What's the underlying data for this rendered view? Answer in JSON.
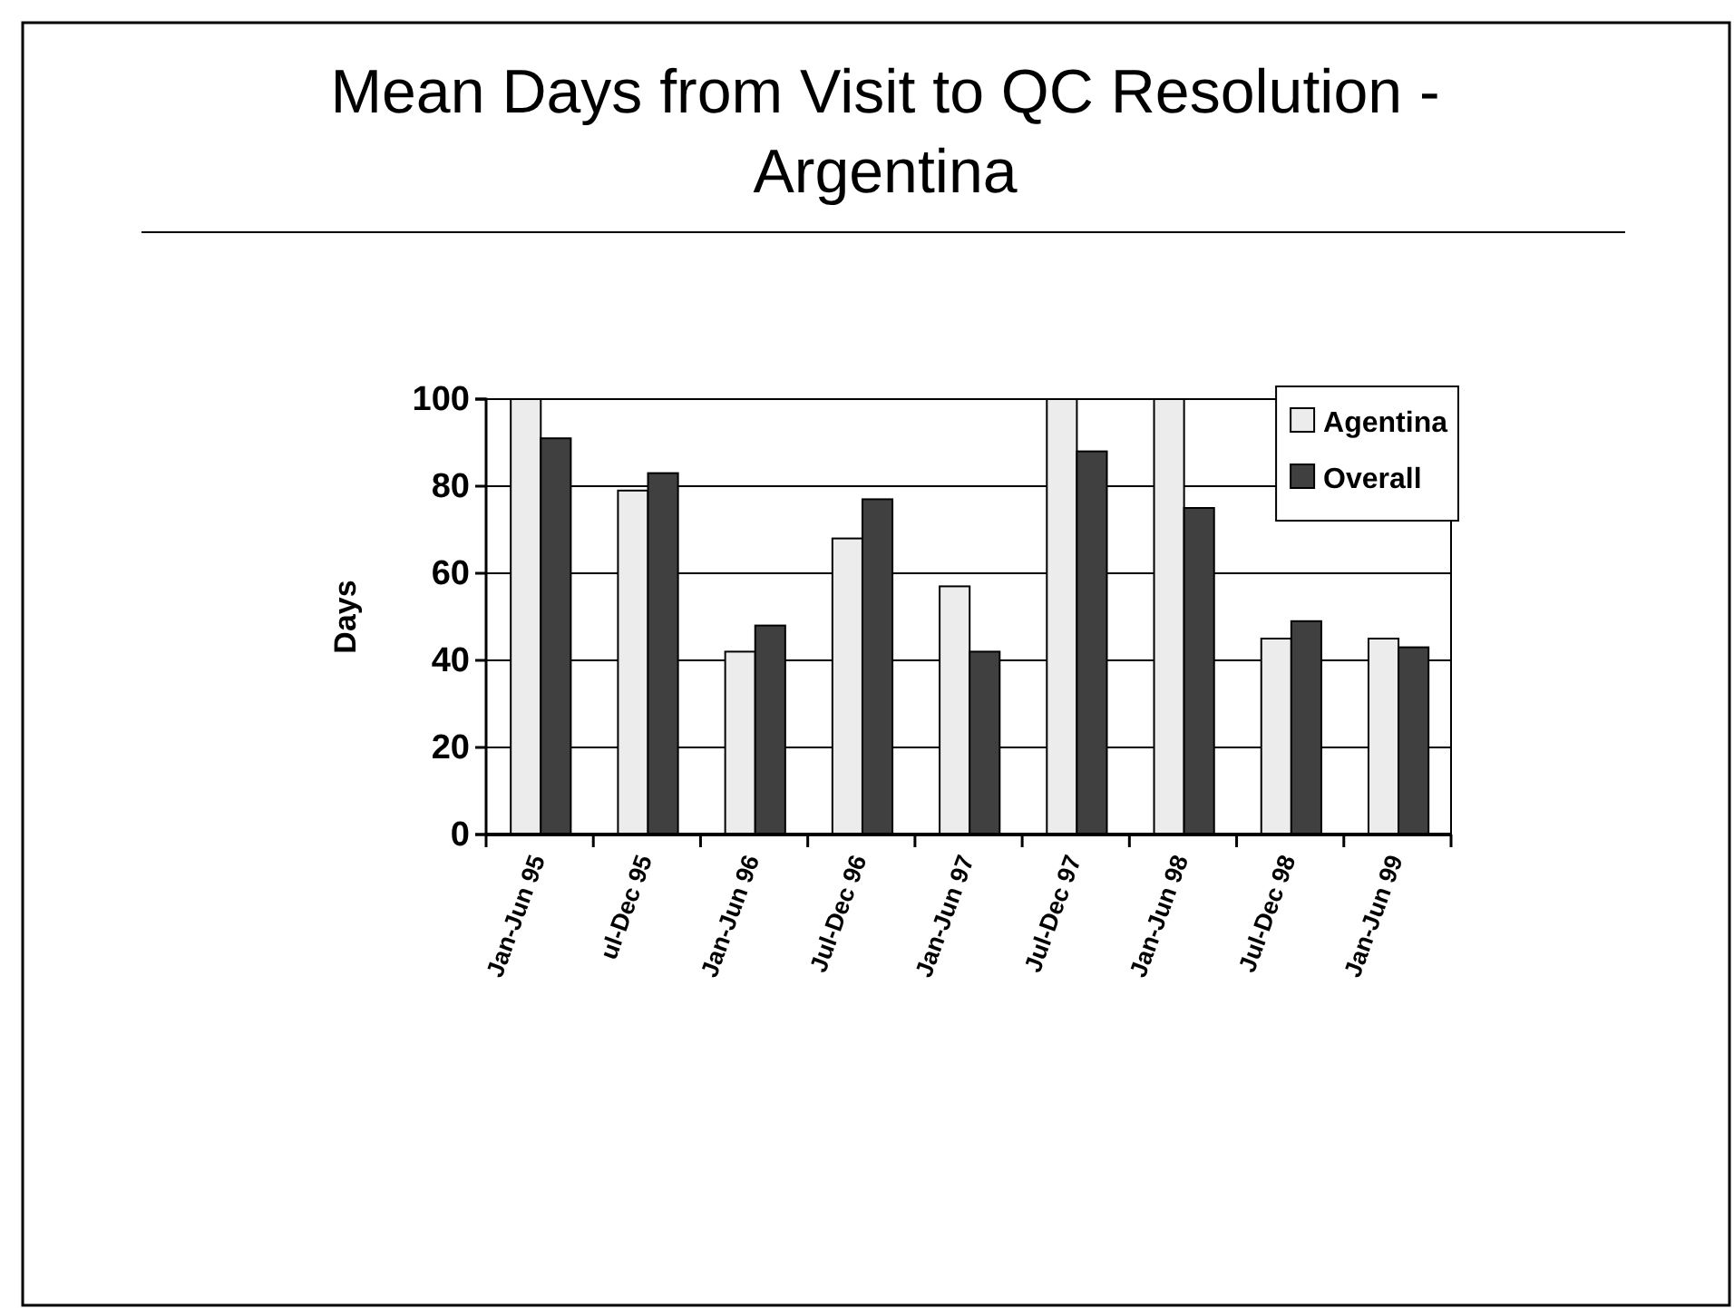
{
  "chart_data": {
    "type": "bar",
    "title": "Mean Days from Visit to QC Resolution - Argentina",
    "ylabel": "Days",
    "categories": [
      "Jan-Jun 95",
      "ul-Dec 95",
      "Jan-Jun 96",
      "Jul-Dec 96",
      "Jan-Jun 97",
      "Jul-Dec 97",
      "Jan-Jun 98",
      "Jul-Dec 98",
      "Jan-Jun 99"
    ],
    "series": [
      {
        "name": "Agentina",
        "color": "#ececec",
        "values": [
          100,
          79,
          42,
          68,
          57,
          100,
          100,
          45,
          45
        ]
      },
      {
        "name": "Overall",
        "color": "#404040",
        "values": [
          91,
          83,
          48,
          77,
          42,
          88,
          75,
          49,
          43
        ]
      }
    ],
    "ylim": [
      0,
      100
    ],
    "yticks": [
      0,
      20,
      40,
      60,
      80,
      100
    ],
    "grid": "y",
    "legend": "top right"
  }
}
